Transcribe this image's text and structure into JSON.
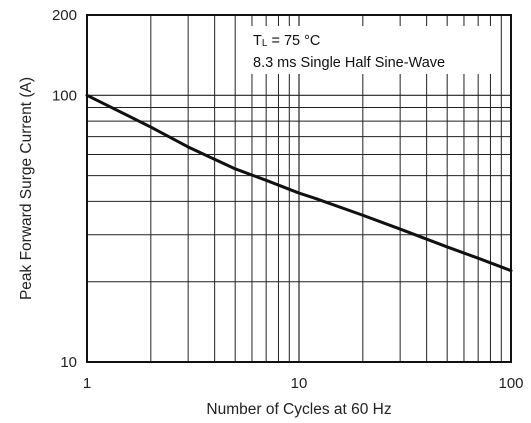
{
  "chart_data": {
    "type": "line",
    "xlabel": "Number of Cycles at 60 Hz",
    "ylabel": "Peak Forward Surge Current (A)",
    "x_scale": "log",
    "y_scale": "log",
    "xlim": [
      1,
      100
    ],
    "ylim": [
      10,
      200
    ],
    "x_ticks": [
      1,
      10,
      100
    ],
    "x_tick_labels": [
      "1",
      "10",
      "100"
    ],
    "y_ticks": [
      10,
      100,
      200
    ],
    "y_tick_labels": [
      "10",
      "100",
      "200"
    ],
    "grid": true,
    "legend_position": "top-right",
    "annotation": {
      "line1_symbol": "T",
      "line1_subscript": "L",
      "line1_text": " = 75 °C",
      "line2": "8.3 ms Single Half Sine-Wave"
    },
    "series": [
      {
        "x": [
          1,
          2,
          3,
          5,
          7,
          10,
          12,
          20,
          30,
          50,
          70,
          100
        ],
        "y": [
          100,
          76,
          64,
          53,
          48,
          43,
          41,
          35.5,
          31.5,
          27,
          24.5,
          22
        ]
      }
    ],
    "colors": {
      "line": "#111111",
      "grid": "#222222",
      "axis": "#111111",
      "background": "#ffffff"
    }
  }
}
